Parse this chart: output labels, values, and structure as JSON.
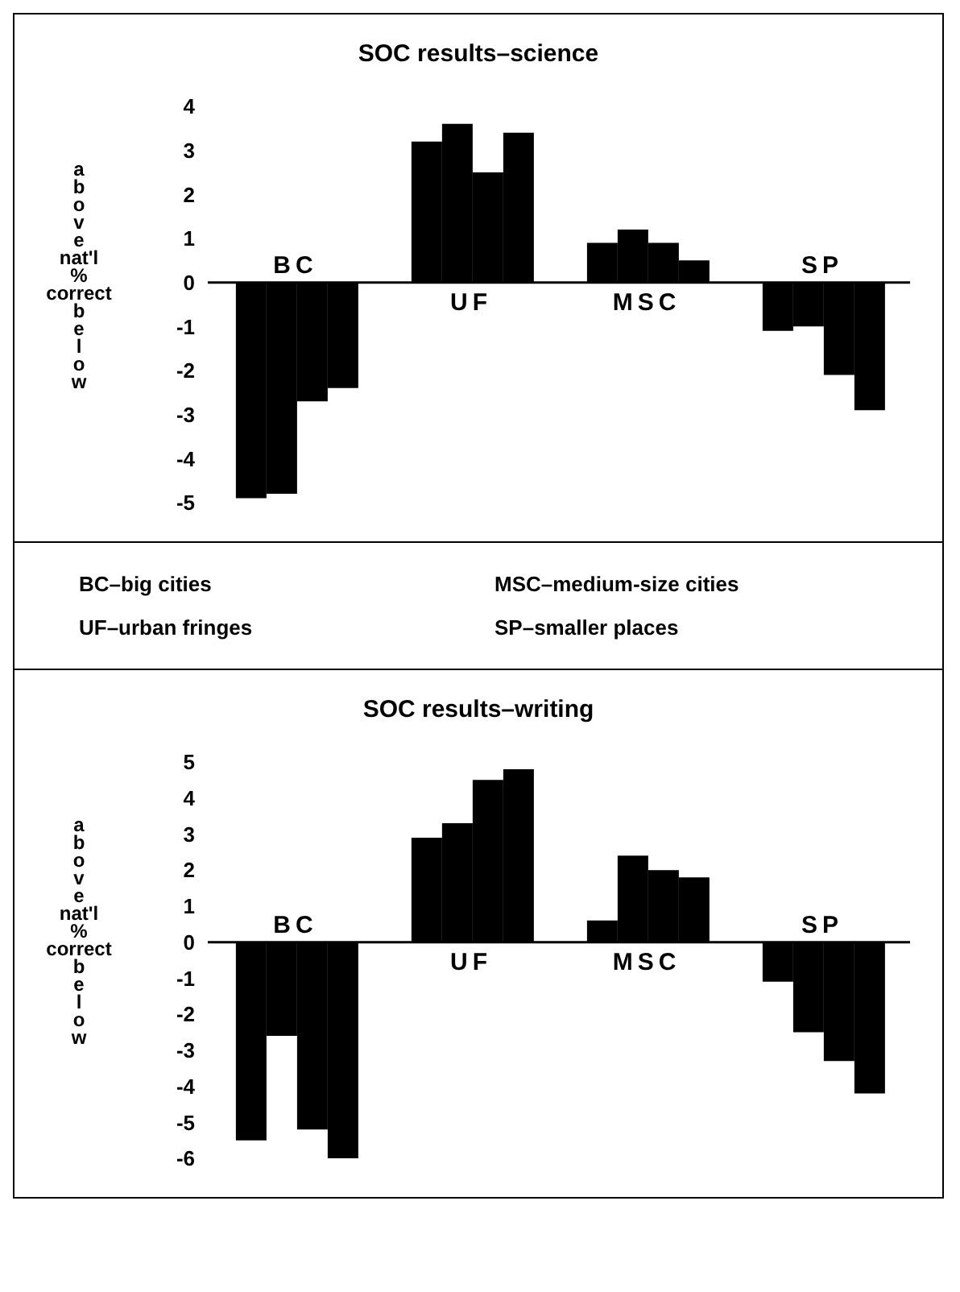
{
  "chart_data": [
    {
      "type": "bar",
      "title": "SOC results–science",
      "ylabel": "above nat'l % correct below",
      "categories": [
        "BC",
        "UF",
        "MSC",
        "SP"
      ],
      "series": [
        {
          "color": "#000000",
          "values": [
            -4.9,
            3.2,
            0.9,
            -1.1
          ]
        },
        {
          "color": "#000000",
          "values": [
            -4.8,
            3.6,
            1.2,
            -1.0
          ]
        },
        {
          "color": "#000000",
          "values": [
            -2.7,
            2.5,
            0.9,
            -2.1
          ]
        },
        {
          "color": "#000000",
          "values": [
            -2.4,
            3.4,
            0.5,
            -2.9
          ]
        }
      ],
      "ylim": [
        -5,
        4
      ],
      "yticks": [
        -5,
        -4,
        -3,
        -2,
        -1,
        0,
        1,
        2,
        3,
        4
      ],
      "grid": false,
      "legend": false,
      "annotations": [
        "BC–big cities",
        "MSC–medium-size cities",
        "UF–urban fringes",
        "SP–smaller places"
      ]
    },
    {
      "type": "bar",
      "title": "SOC results–writing",
      "ylabel": "above nat'l % correct below",
      "categories": [
        "BC",
        "UF",
        "MSC",
        "SP"
      ],
      "series": [
        {
          "color": "#000000",
          "values": [
            -5.5,
            2.9,
            0.6,
            -1.1
          ]
        },
        {
          "color": "#000000",
          "values": [
            -2.6,
            3.3,
            2.4,
            -2.5
          ]
        },
        {
          "color": "#000000",
          "values": [
            -5.2,
            4.5,
            2.0,
            -3.3
          ]
        },
        {
          "color": "#000000",
          "values": [
            -6.0,
            4.8,
            1.8,
            -4.2
          ]
        }
      ],
      "ylim": [
        -6,
        5
      ],
      "yticks": [
        -6,
        -5,
        -4,
        -3,
        -2,
        -1,
        0,
        1,
        2,
        3,
        4,
        5
      ],
      "grid": false,
      "legend": false
    }
  ]
}
